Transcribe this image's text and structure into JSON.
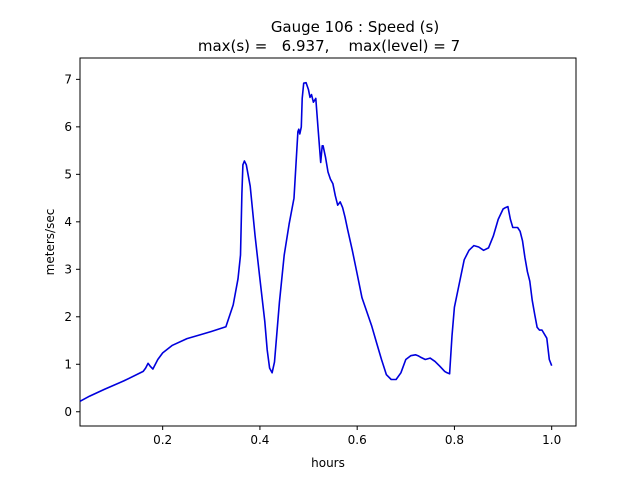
{
  "chart_data": {
    "type": "line",
    "title": "Gauge 106 : Speed (s)",
    "subtitle": "max(s) =   6.937,    max(level) = 7",
    "xlabel": "hours",
    "ylabel": "meters/sec",
    "xlim": [
      0.03,
      1.05
    ],
    "ylim": [
      -0.3,
      7.45
    ],
    "xticks": [
      0.2,
      0.4,
      0.6,
      0.8,
      1.0
    ],
    "xtick_labels": [
      "0.2",
      "0.4",
      "0.6",
      "0.8",
      "1.0"
    ],
    "yticks": [
      0,
      1,
      2,
      3,
      4,
      5,
      6,
      7
    ],
    "ytick_labels": [
      "0",
      "1",
      "2",
      "3",
      "4",
      "5",
      "6",
      "7"
    ],
    "grid": false,
    "legend": "none",
    "series": [
      {
        "color": "#0000dd",
        "x": [
          0.03,
          0.05,
          0.08,
          0.12,
          0.16,
          0.165,
          0.17,
          0.175,
          0.18,
          0.19,
          0.2,
          0.22,
          0.25,
          0.28,
          0.3,
          0.33,
          0.345,
          0.355,
          0.36,
          0.363,
          0.365,
          0.368,
          0.372,
          0.38,
          0.39,
          0.4,
          0.41,
          0.415,
          0.42,
          0.425,
          0.43,
          0.44,
          0.45,
          0.46,
          0.47,
          0.478,
          0.48,
          0.482,
          0.485,
          0.487,
          0.49,
          0.495,
          0.5,
          0.503,
          0.506,
          0.51,
          0.515,
          0.52,
          0.525,
          0.528,
          0.53,
          0.535,
          0.54,
          0.545,
          0.55,
          0.555,
          0.56,
          0.565,
          0.57,
          0.575,
          0.58,
          0.59,
          0.6,
          0.61,
          0.62,
          0.63,
          0.64,
          0.65,
          0.66,
          0.67,
          0.68,
          0.69,
          0.7,
          0.71,
          0.72,
          0.725,
          0.73,
          0.74,
          0.75,
          0.76,
          0.77,
          0.78,
          0.785,
          0.79,
          0.792,
          0.795,
          0.8,
          0.81,
          0.82,
          0.83,
          0.84,
          0.85,
          0.86,
          0.87,
          0.88,
          0.89,
          0.9,
          0.905,
          0.91,
          0.915,
          0.92,
          0.93,
          0.935,
          0.94,
          0.945,
          0.95,
          0.955,
          0.96,
          0.965,
          0.97,
          0.975,
          0.98,
          0.99,
          0.995,
          1.0
        ],
        "y": [
          0.22,
          0.33,
          0.47,
          0.65,
          0.85,
          0.92,
          1.02,
          0.95,
          0.9,
          1.1,
          1.24,
          1.4,
          1.54,
          1.63,
          1.69,
          1.79,
          2.25,
          2.8,
          3.3,
          4.6,
          5.2,
          5.28,
          5.2,
          4.75,
          3.7,
          2.8,
          1.9,
          1.3,
          0.92,
          0.82,
          1.05,
          2.3,
          3.3,
          3.95,
          4.5,
          5.9,
          5.95,
          5.85,
          6.0,
          6.6,
          6.92,
          6.93,
          6.78,
          6.62,
          6.68,
          6.52,
          6.6,
          5.9,
          5.25,
          5.6,
          5.6,
          5.35,
          5.05,
          4.9,
          4.8,
          4.55,
          4.35,
          4.42,
          4.3,
          4.1,
          3.85,
          3.4,
          2.9,
          2.4,
          2.1,
          1.8,
          1.45,
          1.1,
          0.78,
          0.68,
          0.68,
          0.82,
          1.1,
          1.18,
          1.2,
          1.18,
          1.15,
          1.1,
          1.13,
          1.06,
          0.96,
          0.85,
          0.82,
          0.8,
          1.1,
          1.6,
          2.2,
          2.7,
          3.2,
          3.4,
          3.5,
          3.47,
          3.4,
          3.45,
          3.7,
          4.05,
          4.27,
          4.3,
          4.32,
          4.05,
          3.88,
          3.88,
          3.8,
          3.6,
          3.25,
          2.95,
          2.75,
          2.35,
          2.05,
          1.78,
          1.72,
          1.72,
          1.55,
          1.1,
          0.97
        ]
      }
    ]
  }
}
